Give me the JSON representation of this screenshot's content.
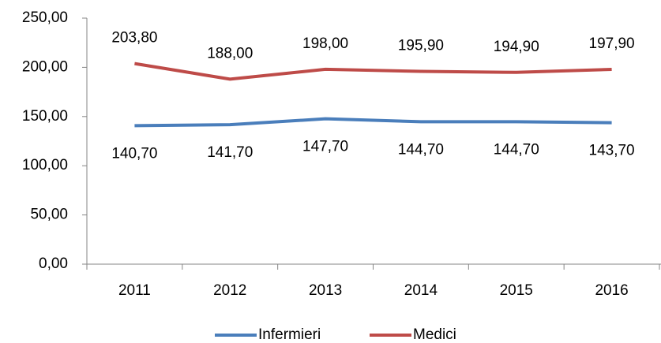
{
  "chart_data": {
    "type": "line",
    "categories": [
      "2011",
      "2012",
      "2013",
      "2014",
      "2015",
      "2016"
    ],
    "series": [
      {
        "name": "Infermieri",
        "color": "#4a7ebb",
        "values": [
          140.7,
          141.7,
          147.7,
          144.7,
          144.7,
          143.7
        ],
        "value_labels": [
          "140,70",
          "141,70",
          "147,70",
          "144,70",
          "144,70",
          "143,70"
        ],
        "label_position": "below"
      },
      {
        "name": "Medici",
        "color": "#be4b48",
        "values": [
          203.8,
          188.0,
          198.0,
          195.9,
          194.9,
          197.9
        ],
        "value_labels": [
          "203,80",
          "188,00",
          "198,00",
          "195,90",
          "194,90",
          "197,90"
        ],
        "label_position": "above"
      }
    ],
    "ylim": [
      0,
      250
    ],
    "yticks": [
      {
        "value": 0,
        "label": "0,00"
      },
      {
        "value": 50,
        "label": "50,00"
      },
      {
        "value": 100,
        "label": "100,00"
      },
      {
        "value": 150,
        "label": "150,00"
      },
      {
        "value": 200,
        "label": "200,00"
      },
      {
        "value": 250,
        "label": "250,00"
      }
    ],
    "grid": false,
    "legend": "bottom"
  }
}
